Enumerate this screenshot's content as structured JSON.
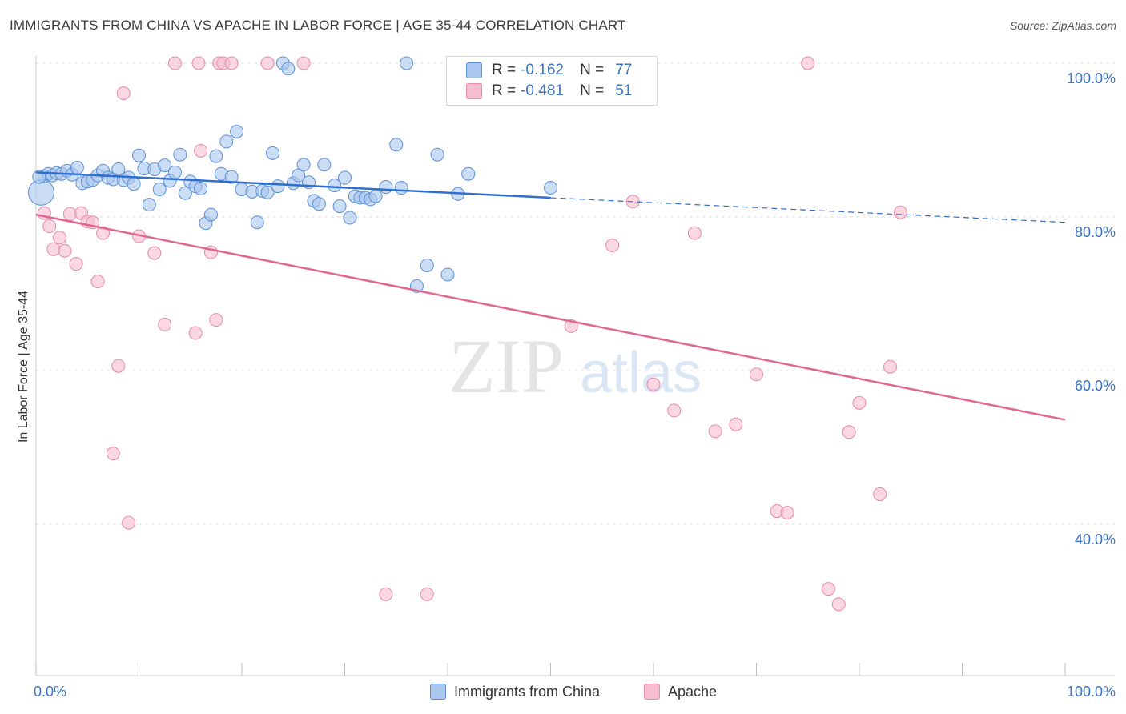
{
  "title": "IMMIGRANTS FROM CHINA VS APACHE IN LABOR FORCE | AGE 35-44 CORRELATION CHART",
  "source": "Source: ZipAtlas.com",
  "watermark": {
    "zip": "ZIP",
    "atlas": "atlas"
  },
  "colors": {
    "blue_fill": "#a9c6ef",
    "blue_stroke": "#5b8fd6",
    "blue_line": "#2e6ecf",
    "pink_fill": "#f6bcd0",
    "pink_stroke": "#e68aa8",
    "pink_line": "#e2658f",
    "axis_text": "#3b72c4",
    "grid": "#dddddd"
  },
  "stats": [
    {
      "label": "R =",
      "r": "-0.162",
      "n_label": "N =",
      "n": "77"
    },
    {
      "label": "R =",
      "r": "-0.481",
      "n_label": "N =",
      "n": "51"
    }
  ],
  "chart_data": {
    "type": "scatter",
    "title": "IMMIGRANTS FROM CHINA VS APACHE IN LABOR FORCE | AGE 35-44 CORRELATION CHART",
    "xlabel": "",
    "ylabel": "In Labor Force | Age 35-44",
    "xlim": [
      0,
      100
    ],
    "ylim": [
      18,
      102
    ],
    "x_tick_labels": [
      "0.0%",
      "100.0%"
    ],
    "y_ticks": [
      100,
      80,
      60,
      40
    ],
    "y_tick_labels": [
      "100.0%",
      "80.0%",
      "60.0%",
      "40.0%"
    ],
    "legend": [
      "Immigrants from China",
      "Apache"
    ],
    "series": [
      {
        "name": "Immigrants from China",
        "color": "#a9c6ef",
        "trend": {
          "x0": 0,
          "y0": 85.8,
          "x1": 50,
          "y1": 82.5,
          "dash_to_x": 100,
          "dash_to_y": 79.3
        },
        "points": [
          [
            0.5,
            83.2
          ],
          [
            0.8,
            85.3
          ],
          [
            1.2,
            85.6
          ],
          [
            1.6,
            85.4
          ],
          [
            2.0,
            85.7
          ],
          [
            2.5,
            85.6
          ],
          [
            3.0,
            86.0
          ],
          [
            3.5,
            85.5
          ],
          [
            4.0,
            86.4
          ],
          [
            4.5,
            84.4
          ],
          [
            5.0,
            84.6
          ],
          [
            5.5,
            84.8
          ],
          [
            6.0,
            85.4
          ],
          [
            6.5,
            86.0
          ],
          [
            7.0,
            85.1
          ],
          [
            7.5,
            84.9
          ],
          [
            8.0,
            86.2
          ],
          [
            8.5,
            84.8
          ],
          [
            9.0,
            85.1
          ],
          [
            9.5,
            84.3
          ],
          [
            10.0,
            88.0
          ],
          [
            10.5,
            86.3
          ],
          [
            11.0,
            81.6
          ],
          [
            11.5,
            86.2
          ],
          [
            12.0,
            83.6
          ],
          [
            12.5,
            86.7
          ],
          [
            13.0,
            84.7
          ],
          [
            13.5,
            85.8
          ],
          [
            14.0,
            88.1
          ],
          [
            14.5,
            83.1
          ],
          [
            15.0,
            84.6
          ],
          [
            15.5,
            84.0
          ],
          [
            16.0,
            83.7
          ],
          [
            16.5,
            79.2
          ],
          [
            17.0,
            80.3
          ],
          [
            17.5,
            87.9
          ],
          [
            18.0,
            85.6
          ],
          [
            18.5,
            89.8
          ],
          [
            19.0,
            85.2
          ],
          [
            19.5,
            91.1
          ],
          [
            20.0,
            83.6
          ],
          [
            21.0,
            83.3
          ],
          [
            21.5,
            79.3
          ],
          [
            22.0,
            83.4
          ],
          [
            22.5,
            83.2
          ],
          [
            23.0,
            88.3
          ],
          [
            23.5,
            84.0
          ],
          [
            24.0,
            100.0
          ],
          [
            24.5,
            99.3
          ],
          [
            25.0,
            84.4
          ],
          [
            25.5,
            85.4
          ],
          [
            26.0,
            86.8
          ],
          [
            26.5,
            84.5
          ],
          [
            27.0,
            82.1
          ],
          [
            27.5,
            81.7
          ],
          [
            28.0,
            86.8
          ],
          [
            29.0,
            84.1
          ],
          [
            29.5,
            81.4
          ],
          [
            30.0,
            85.1
          ],
          [
            30.5,
            79.9
          ],
          [
            31.0,
            82.7
          ],
          [
            31.5,
            82.5
          ],
          [
            32.0,
            82.5
          ],
          [
            32.5,
            82.3
          ],
          [
            33.0,
            82.7
          ],
          [
            34.0,
            83.9
          ],
          [
            35.0,
            89.4
          ],
          [
            35.5,
            83.8
          ],
          [
            36.0,
            100.0
          ],
          [
            37.0,
            71.0
          ],
          [
            38.0,
            73.7
          ],
          [
            39.0,
            88.1
          ],
          [
            40.0,
            72.5
          ],
          [
            41.0,
            83.0
          ],
          [
            42.0,
            85.6
          ],
          [
            50.0,
            83.8
          ],
          [
            0.3,
            85.2
          ]
        ]
      },
      {
        "name": "Apache",
        "color": "#f6bcd0",
        "trend": {
          "x0": 0,
          "y0": 80.3,
          "x1": 100,
          "y1": 53.6
        },
        "points": [
          [
            0.8,
            80.5
          ],
          [
            1.3,
            78.8
          ],
          [
            1.7,
            75.8
          ],
          [
            2.3,
            77.3
          ],
          [
            2.8,
            75.6
          ],
          [
            3.3,
            80.4
          ],
          [
            3.9,
            73.9
          ],
          [
            4.4,
            80.5
          ],
          [
            5.0,
            79.4
          ],
          [
            5.5,
            79.3
          ],
          [
            6.0,
            71.6
          ],
          [
            6.5,
            77.9
          ],
          [
            7.5,
            49.2
          ],
          [
            8.0,
            60.6
          ],
          [
            8.5,
            96.1
          ],
          [
            9.0,
            40.2
          ],
          [
            10.0,
            77.5
          ],
          [
            11.5,
            75.3
          ],
          [
            12.5,
            66.0
          ],
          [
            13.5,
            100.0
          ],
          [
            15.5,
            64.9
          ],
          [
            15.8,
            100.0
          ],
          [
            16.0,
            88.6
          ],
          [
            17.0,
            75.4
          ],
          [
            17.5,
            66.6
          ],
          [
            17.8,
            100.0
          ],
          [
            18.2,
            100.0
          ],
          [
            19.0,
            100.0
          ],
          [
            22.5,
            100.0
          ],
          [
            26.0,
            100.0
          ],
          [
            34.0,
            30.9
          ],
          [
            38.0,
            30.9
          ],
          [
            52.0,
            65.8
          ],
          [
            56.0,
            76.3
          ],
          [
            58.0,
            82.0
          ],
          [
            60.0,
            58.2
          ],
          [
            62.0,
            54.8
          ],
          [
            64.0,
            77.9
          ],
          [
            66.0,
            52.1
          ],
          [
            68.0,
            53.0
          ],
          [
            70.0,
            59.5
          ],
          [
            72.0,
            41.7
          ],
          [
            73.0,
            41.5
          ],
          [
            75.0,
            100.0
          ],
          [
            77.0,
            31.6
          ],
          [
            78.0,
            29.6
          ],
          [
            79.0,
            52.0
          ],
          [
            80.0,
            55.8
          ],
          [
            82.0,
            43.9
          ],
          [
            83.0,
            60.5
          ],
          [
            84.0,
            80.6
          ]
        ]
      }
    ]
  }
}
